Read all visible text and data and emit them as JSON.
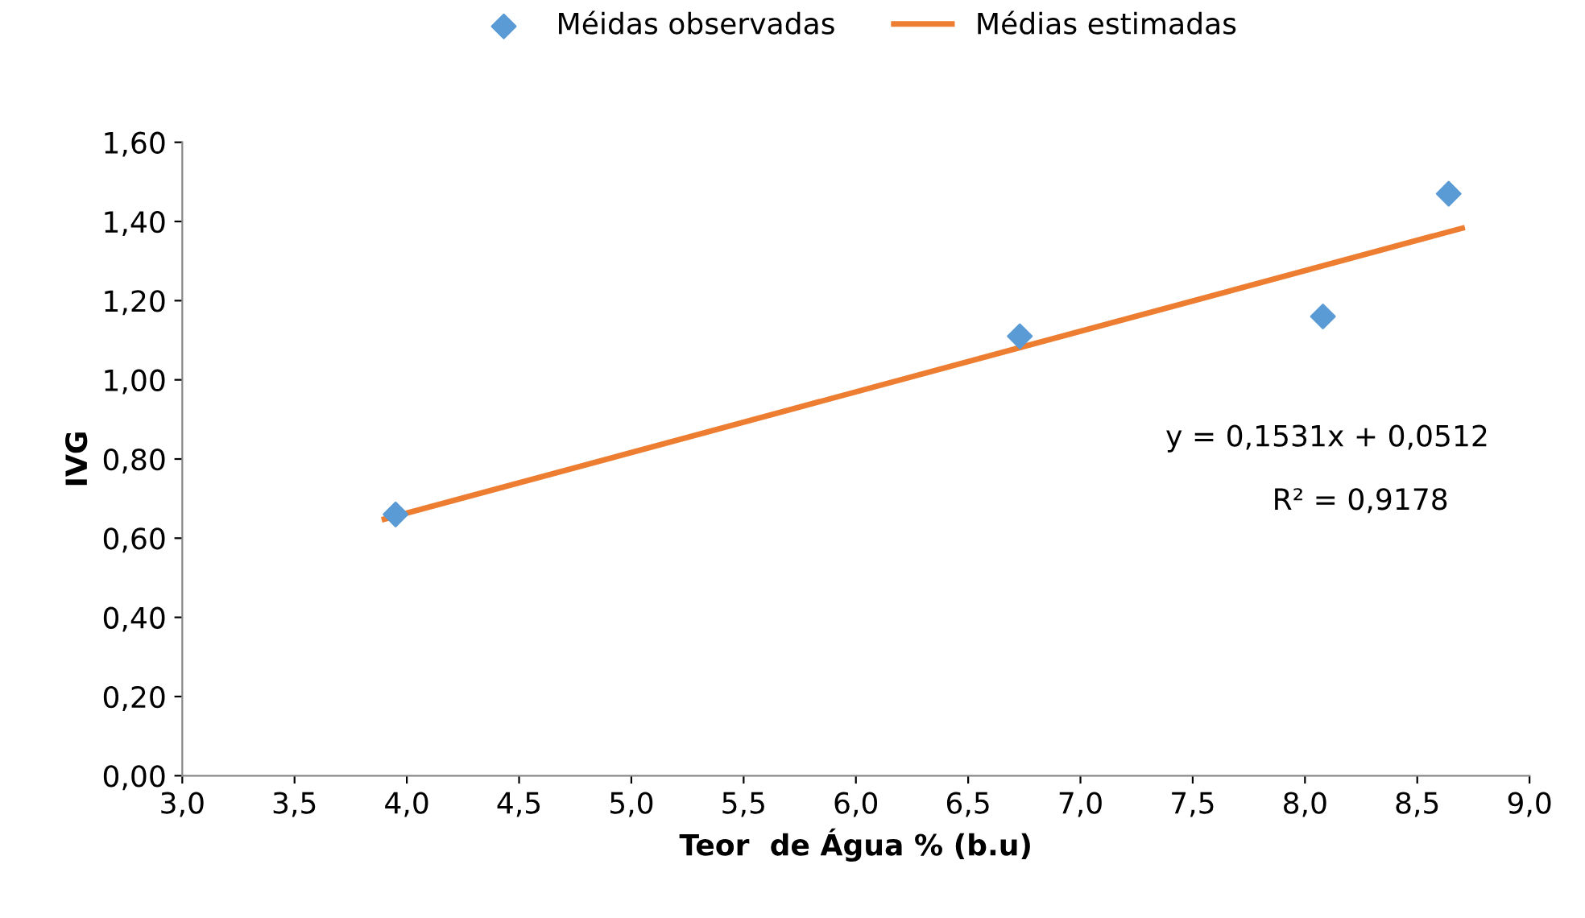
{
  "chart_data": {
    "type": "scatter",
    "xlabel": "Teor  de Água % (b.u)",
    "ylabel": "IVG",
    "legend": "top",
    "series": [
      {
        "name": "Méidas observadas",
        "color": "#5b9bd5",
        "marker": "diamond",
        "x": [
          3.95,
          6.73,
          8.08,
          8.64
        ],
        "values": [
          0.66,
          1.11,
          1.16,
          1.47
        ]
      },
      {
        "name": "Médias estimadas",
        "type": "line",
        "color": "#ed7d31",
        "marker": "none",
        "x": [
          3.9,
          8.7
        ],
        "values": [
          0.648,
          1.383
        ]
      }
    ],
    "annotations": [
      "y = 0,1531x + 0,0512",
      "R² = 0,9178"
    ],
    "xlim": [
      3,
      9
    ],
    "ylim": [
      0,
      1.6
    ],
    "xticks": [
      {
        "value": 3,
        "label": "3,0"
      },
      {
        "value": 3.5,
        "label": "3,5"
      },
      {
        "value": 4,
        "label": "4,0"
      },
      {
        "value": 4.5,
        "label": "4,5"
      },
      {
        "value": 5,
        "label": "5,0"
      },
      {
        "value": 5.5,
        "label": "5,5"
      },
      {
        "value": 6,
        "label": "6,0"
      },
      {
        "value": 6.5,
        "label": "6,5"
      },
      {
        "value": 7,
        "label": "7,0"
      },
      {
        "value": 7.5,
        "label": "7,5"
      },
      {
        "value": 8,
        "label": "8,0"
      },
      {
        "value": 8.5,
        "label": "8,5"
      },
      {
        "value": 9,
        "label": "9,0"
      }
    ],
    "yticks": [
      {
        "value": 0,
        "label": "0,00"
      },
      {
        "value": 0.2,
        "label": "0,20"
      },
      {
        "value": 0.4,
        "label": "0,40"
      },
      {
        "value": 0.6,
        "label": "0,60"
      },
      {
        "value": 0.8,
        "label": "0,80"
      },
      {
        "value": 1.0,
        "label": "1,00"
      },
      {
        "value": 1.2,
        "label": "1,20"
      },
      {
        "value": 1.4,
        "label": "1,40"
      },
      {
        "value": 1.6,
        "label": "1,60"
      }
    ]
  }
}
